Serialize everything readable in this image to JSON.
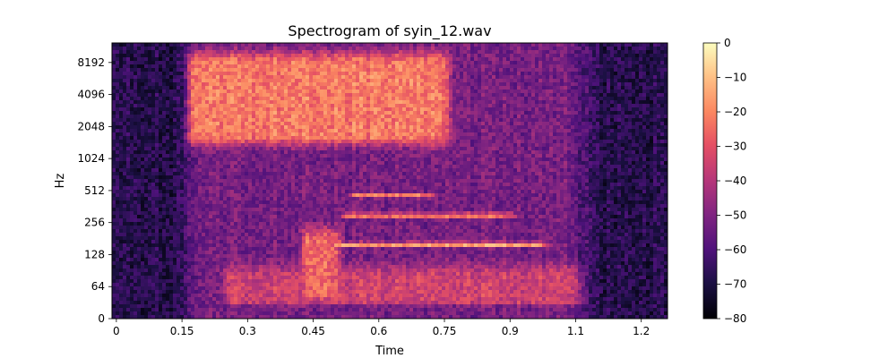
{
  "chart_data": {
    "type": "heatmap",
    "title": "Spectrogram of syin_12.wav",
    "xlabel": "Time",
    "ylabel": "Hz",
    "xlim": [
      -0.01,
      1.26
    ],
    "x_ticks": [
      {
        "value": 0,
        "label": "0"
      },
      {
        "value": 0.15,
        "label": "0.15"
      },
      {
        "value": 0.3,
        "label": "0.3"
      },
      {
        "value": 0.45,
        "label": "0.45"
      },
      {
        "value": 0.6,
        "label": "0.6"
      },
      {
        "value": 0.75,
        "label": "0.75"
      },
      {
        "value": 0.9,
        "label": "0.9"
      },
      {
        "value": 1.05,
        "label": "1.1"
      },
      {
        "value": 1.2,
        "label": "1.2"
      }
    ],
    "y_scale": "symlog",
    "y_ticks": [
      {
        "value": 0,
        "label": "0"
      },
      {
        "value": 64,
        "label": "64"
      },
      {
        "value": 128,
        "label": "128"
      },
      {
        "value": 256,
        "label": "256"
      },
      {
        "value": 512,
        "label": "512"
      },
      {
        "value": 1024,
        "label": "1024"
      },
      {
        "value": 2048,
        "label": "2048"
      },
      {
        "value": 4096,
        "label": "4096"
      },
      {
        "value": 8192,
        "label": "8192"
      }
    ],
    "colorbar": {
      "range": [
        -80,
        0
      ],
      "colormap": "magma",
      "ticks": [
        {
          "value": 0,
          "label": "0"
        },
        {
          "value": -10,
          "label": "−10"
        },
        {
          "value": -20,
          "label": "−20"
        },
        {
          "value": -30,
          "label": "−30"
        },
        {
          "value": -40,
          "label": "−40"
        },
        {
          "value": -50,
          "label": "−50"
        },
        {
          "value": -60,
          "label": "−60"
        },
        {
          "value": -70,
          "label": "−70"
        },
        {
          "value": -80,
          "label": "−80"
        }
      ]
    },
    "grid": false,
    "legend": "none",
    "signal_regions": [
      {
        "feature": "broadband energy",
        "t_start": 0.17,
        "t_end": 0.75,
        "f_low": 1500,
        "f_high": 9000,
        "db": -22
      },
      {
        "feature": "fundamental",
        "t_start": 0.5,
        "t_end": 0.97,
        "f": 160,
        "db": -8
      },
      {
        "feature": "harmonic",
        "t_start": 0.52,
        "t_end": 0.9,
        "f": 300,
        "db": -12
      },
      {
        "feature": "harmonic",
        "t_start": 0.54,
        "t_end": 0.72,
        "f": 460,
        "db": -22
      },
      {
        "feature": "low-frequency burst",
        "t_start": 0.43,
        "t_end": 0.5,
        "f_low": 40,
        "f_high": 200,
        "db": -25
      },
      {
        "feature": "low band energy",
        "t_start": 0.25,
        "t_end": 1.05,
        "f_low": 30,
        "f_high": 90,
        "db": -35
      }
    ]
  }
}
